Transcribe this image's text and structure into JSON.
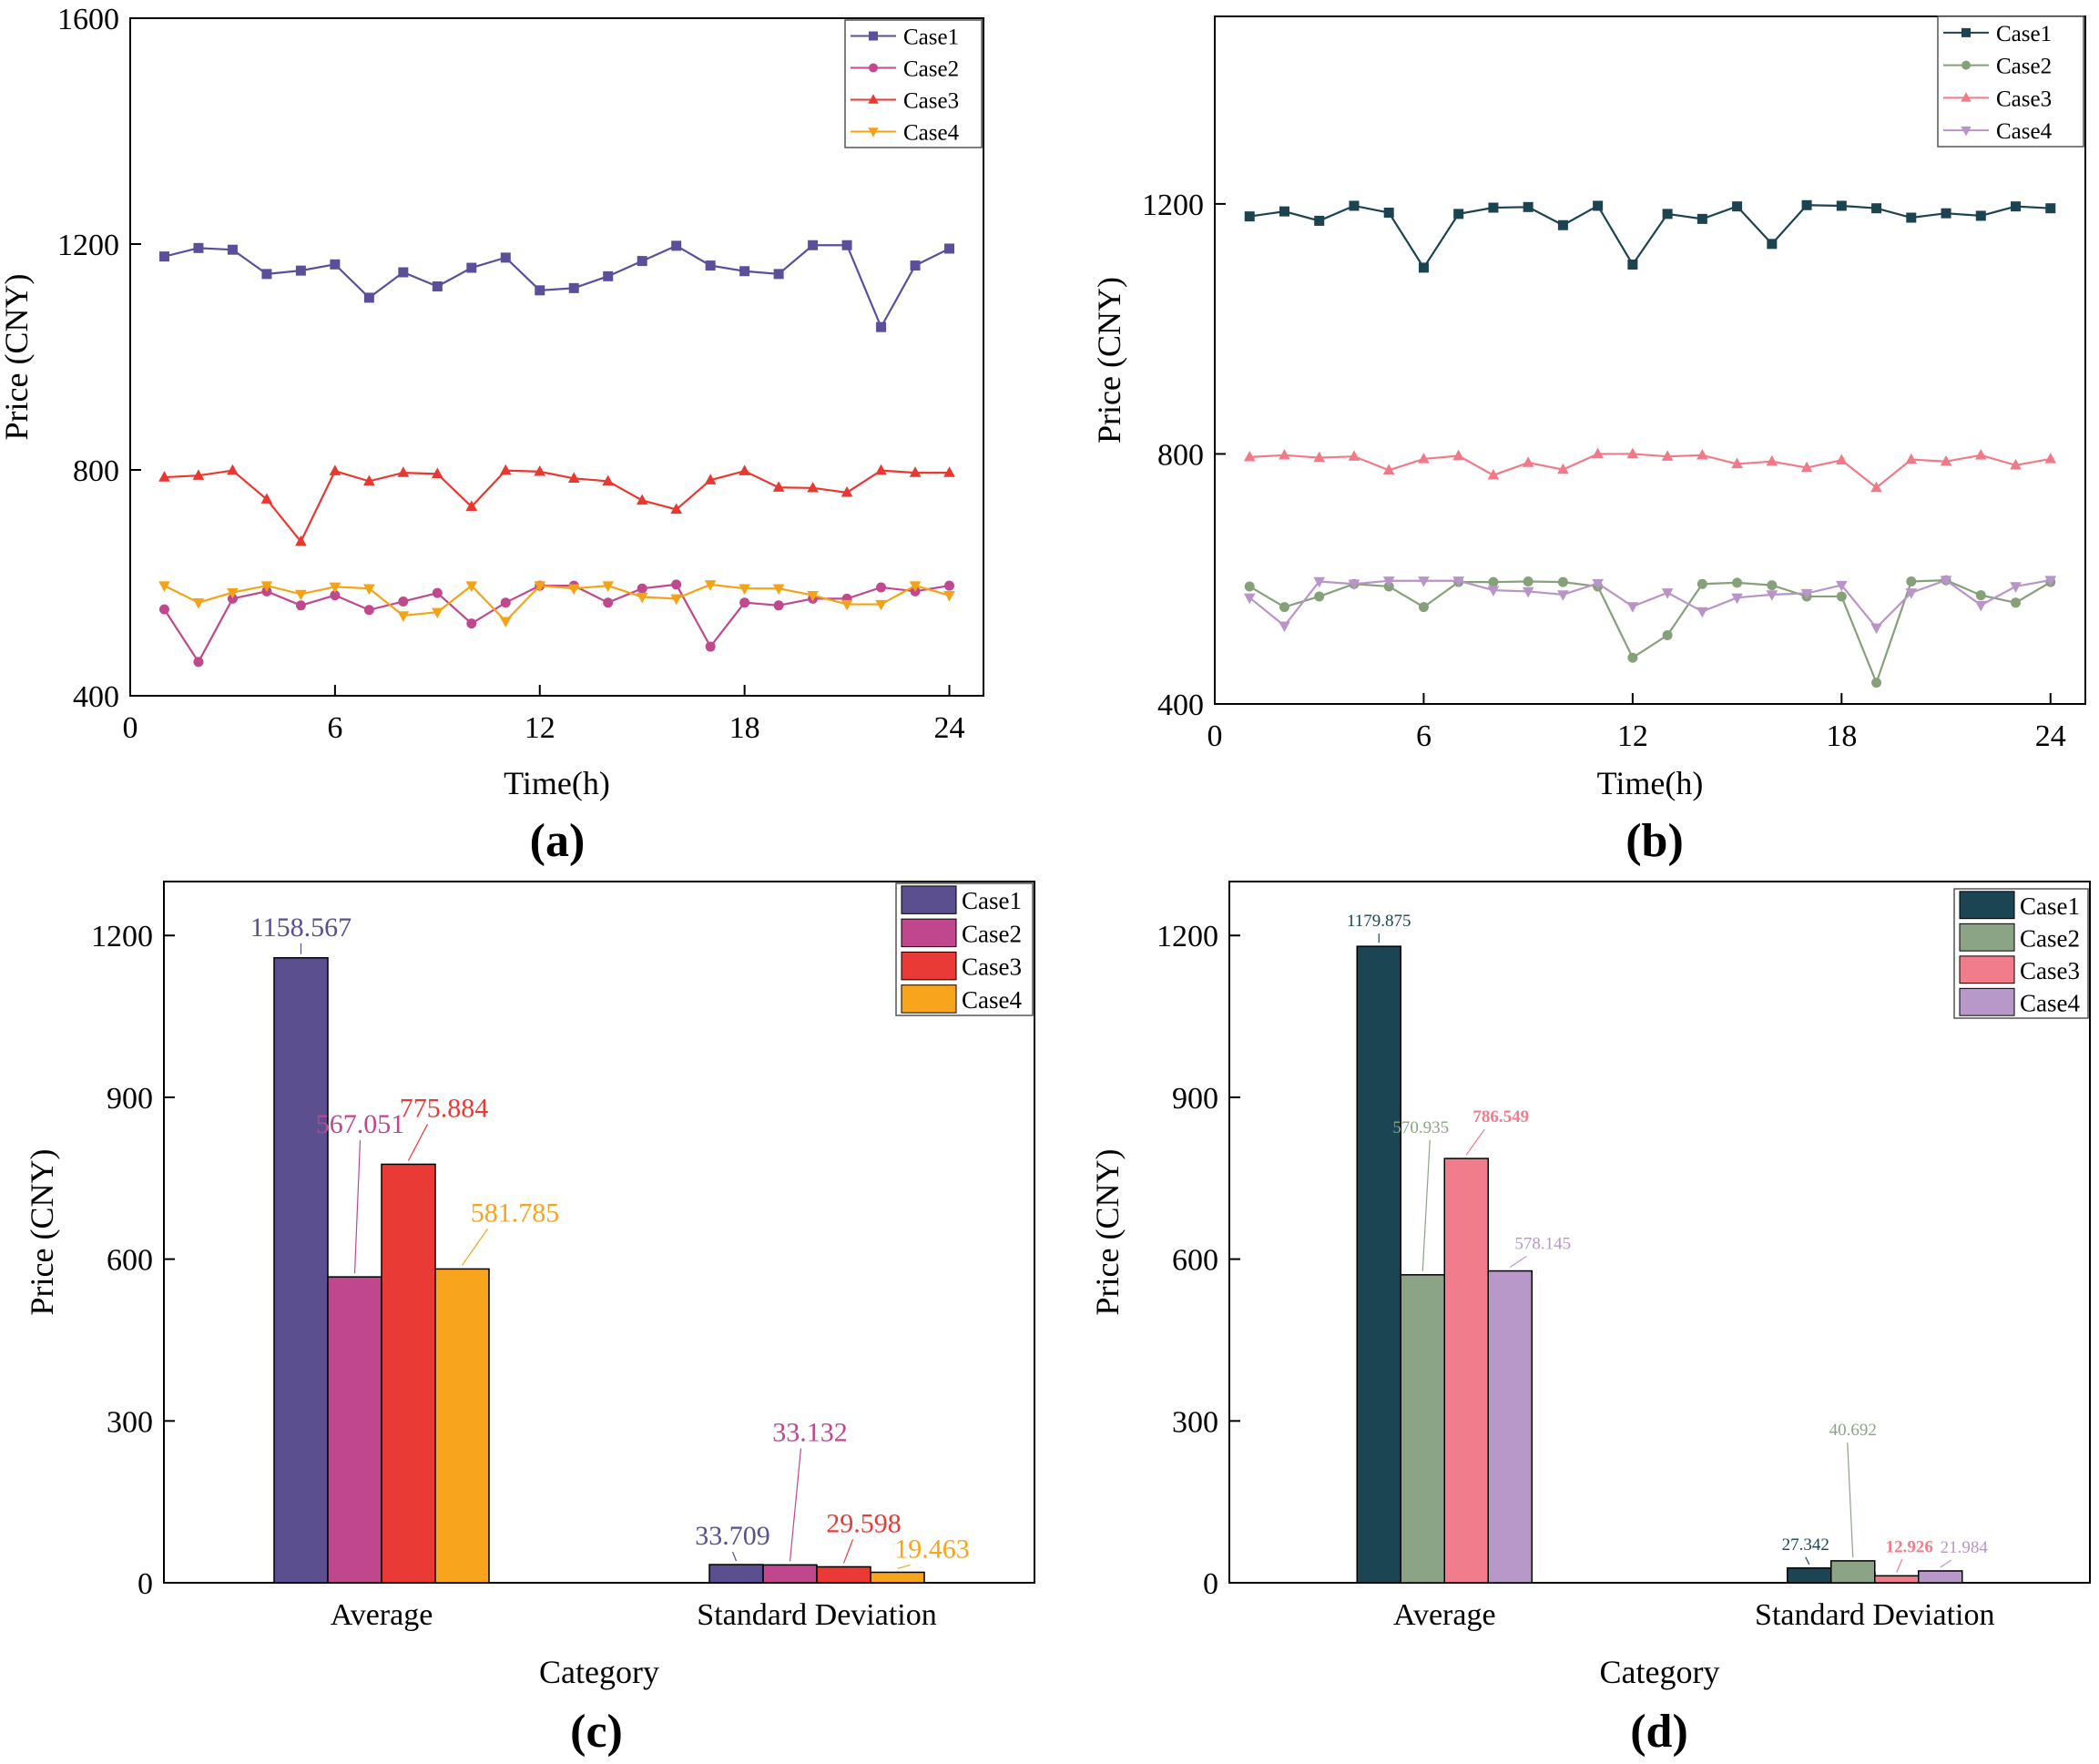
{
  "figure": {
    "panel_a_label": "(a)",
    "panel_b_label": "(b)",
    "panel_c_label": "(c)",
    "panel_d_label": "(d)"
  },
  "chart_data": [
    {
      "id": "a",
      "type": "line",
      "xlabel": "Time(h)",
      "ylabel": "Price (CNY)",
      "xlim": [
        0,
        25
      ],
      "ylim": [
        400,
        1600
      ],
      "xticks": [
        0,
        6,
        12,
        18,
        24
      ],
      "yticks": [
        400,
        800,
        1200,
        1600
      ],
      "legend_position": "top-right",
      "x": [
        1,
        2,
        3,
        4,
        5,
        6,
        7,
        8,
        9,
        10,
        11,
        12,
        13,
        14,
        15,
        16,
        17,
        18,
        19,
        20,
        21,
        22,
        23,
        24
      ],
      "series": [
        {
          "name": "Case1",
          "color": "#5b4f9c",
          "marker": "square",
          "values": [
            1178,
            1193,
            1190,
            1147,
            1153,
            1164,
            1105,
            1150,
            1125,
            1158,
            1176,
            1118,
            1122,
            1143,
            1170,
            1197,
            1162,
            1152,
            1147,
            1198,
            1198,
            1053,
            1162,
            1192
          ]
        },
        {
          "name": "Case2",
          "color": "#c0488e",
          "marker": "circle",
          "values": [
            553,
            460,
            572,
            585,
            560,
            578,
            552,
            567,
            582,
            528,
            565,
            595,
            595,
            565,
            590,
            597,
            487,
            565,
            560,
            572,
            572,
            592,
            585,
            595
          ]
        },
        {
          "name": "Case3",
          "color": "#e8382f",
          "marker": "triangle-up",
          "values": [
            787,
            790,
            799,
            748,
            673,
            798,
            780,
            795,
            793,
            735,
            799,
            797,
            785,
            780,
            746,
            730,
            782,
            798,
            769,
            768,
            760,
            799,
            795,
            795
          ]
        },
        {
          "name": "Case4",
          "color": "#f5a316",
          "marker": "triangle-down",
          "values": [
            595,
            565,
            583,
            595,
            580,
            593,
            590,
            542,
            548,
            595,
            532,
            595,
            590,
            595,
            575,
            572,
            597,
            590,
            590,
            578,
            562,
            562,
            595,
            578
          ]
        }
      ]
    },
    {
      "id": "b",
      "type": "line",
      "xlabel": "Time(h)",
      "ylabel": "Price (CNY)",
      "xlim": [
        0,
        25
      ],
      "ylim": [
        400,
        1500
      ],
      "xticks": [
        0,
        6,
        12,
        18,
        24
      ],
      "yticks": [
        400,
        800,
        1200
      ],
      "legend_position": "top-right",
      "x": [
        1,
        2,
        3,
        4,
        5,
        6,
        7,
        8,
        9,
        10,
        11,
        12,
        13,
        14,
        15,
        16,
        17,
        18,
        19,
        20,
        21,
        22,
        23,
        24
      ],
      "series": [
        {
          "name": "Case1",
          "color": "#1c4350",
          "marker": "square",
          "values": [
            1180,
            1188,
            1173,
            1197,
            1186,
            1098,
            1184,
            1194,
            1195,
            1166,
            1197,
            1103,
            1184,
            1176,
            1196,
            1136,
            1198,
            1197,
            1193,
            1178,
            1185,
            1181,
            1196,
            1193
          ]
        },
        {
          "name": "Case2",
          "color": "#86a07a",
          "marker": "circle",
          "values": [
            588,
            555,
            572,
            592,
            588,
            555,
            595,
            595,
            596,
            595,
            588,
            474,
            510,
            592,
            594,
            590,
            572,
            572,
            434,
            596,
            598,
            574,
            562,
            595
          ]
        },
        {
          "name": "Case3",
          "color": "#f07a88",
          "marker": "triangle-up",
          "values": [
            795,
            798,
            794,
            796,
            774,
            792,
            797,
            766,
            786,
            775,
            800,
            800,
            796,
            798,
            784,
            788,
            778,
            790,
            746,
            791,
            788,
            798,
            782,
            792
          ]
        },
        {
          "name": "Case4",
          "color": "#b894c8",
          "marker": "triangle-down",
          "values": [
            570,
            525,
            596,
            592,
            597,
            597,
            597,
            582,
            580,
            575,
            593,
            556,
            578,
            548,
            570,
            575,
            577,
            590,
            522,
            578,
            598,
            558,
            588,
            598
          ]
        }
      ]
    },
    {
      "id": "c",
      "type": "bar",
      "xlabel": "Category",
      "ylabel": "Price (CNY)",
      "ylim": [
        0,
        1300
      ],
      "yticks": [
        0,
        300,
        600,
        900,
        1200
      ],
      "legend_position": "top-right",
      "categories": [
        "Average",
        "Standard Deviation"
      ],
      "series": [
        {
          "name": "Case1",
          "color": "#5b4f8f",
          "values": [
            1158.567,
            33.709
          ],
          "labels": [
            "1158.567",
            "33.709"
          ]
        },
        {
          "name": "Case2",
          "color": "#c0478e",
          "values": [
            567.051,
            33.132
          ],
          "labels": [
            "567.051",
            "33.132"
          ]
        },
        {
          "name": "Case3",
          "color": "#ea3a36",
          "values": [
            775.884,
            29.598
          ],
          "labels": [
            "775.884",
            "29.598"
          ]
        },
        {
          "name": "Case4",
          "color": "#f8a41c",
          "values": [
            581.785,
            19.463
          ],
          "labels": [
            "581.785",
            "19.463"
          ]
        }
      ]
    },
    {
      "id": "d",
      "type": "bar",
      "xlabel": "Category",
      "ylabel": "Price (CNY)",
      "ylim": [
        0,
        1300
      ],
      "yticks": [
        0,
        300,
        600,
        900,
        1200
      ],
      "legend_position": "top-right",
      "categories": [
        "Average",
        "Standard Deviation"
      ],
      "series": [
        {
          "name": "Case1",
          "color": "#1b4553",
          "values": [
            1179.875,
            27.342
          ],
          "labels": [
            "1179.875",
            "27.342"
          ]
        },
        {
          "name": "Case2",
          "color": "#8ca486",
          "values": [
            570.935,
            40.692
          ],
          "labels": [
            "570.935",
            "40.692"
          ]
        },
        {
          "name": "Case3",
          "color": "#f07c8c",
          "values": [
            786.549,
            12.926
          ],
          "labels": [
            "786.549",
            "12.926"
          ]
        },
        {
          "name": "Case4",
          "color": "#b898c8",
          "values": [
            578.145,
            21.984
          ],
          "labels": [
            "578.145",
            "21.984"
          ]
        }
      ]
    }
  ]
}
